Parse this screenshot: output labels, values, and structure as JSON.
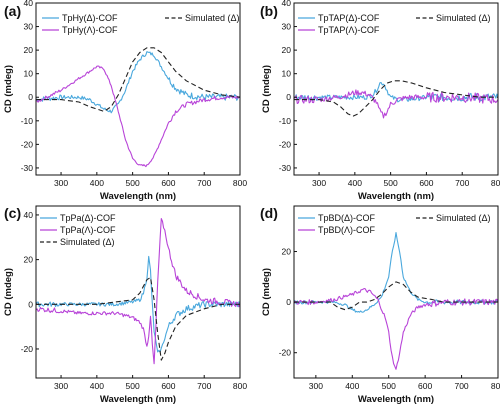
{
  "figure": {
    "xlabel": "Wavelength (nm)",
    "ylabel": "CD (mdeg)",
    "colors": {
      "delta": "#4aa8dd",
      "lambda": "#b844d8",
      "simulated": "#222222"
    }
  },
  "chart_data": [
    {
      "panel": "(a)",
      "type": "line",
      "xlabel": "Wavelength (nm)",
      "ylabel": "CD (mdeg)",
      "xlim": [
        230,
        800
      ],
      "ylim": [
        -33,
        40
      ],
      "xticks": [
        300,
        400,
        500,
        600,
        700,
        800
      ],
      "yticks": [
        -30,
        -20,
        -10,
        0,
        10,
        20,
        30,
        40
      ],
      "legend": {
        "columns": 2
      },
      "series": [
        {
          "name": "TpHy(Δ)-COF",
          "color": "#4aa8dd",
          "style": "solid",
          "noise": 0.8,
          "x": [
            230,
            300,
            350,
            380,
            400,
            420,
            440,
            460,
            480,
            500,
            520,
            540,
            560,
            580,
            600,
            620,
            650,
            700,
            750,
            800
          ],
          "y": [
            -1,
            0,
            0,
            -1,
            -3,
            -5,
            -6,
            -3,
            3,
            11,
            16,
            19,
            18,
            13,
            8,
            4,
            1,
            0,
            0,
            0
          ]
        },
        {
          "name": "TpHy(Λ)-COF",
          "color": "#b844d8",
          "style": "solid",
          "noise": 0.5,
          "x": [
            230,
            260,
            300,
            340,
            380,
            400,
            420,
            440,
            460,
            480,
            500,
            520,
            540,
            560,
            580,
            600,
            620,
            650,
            700,
            750,
            800
          ],
          "y": [
            -2,
            0,
            3,
            7,
            11,
            13,
            12,
            5,
            -6,
            -18,
            -26,
            -29,
            -29,
            -25,
            -18,
            -11,
            -6,
            -3,
            -1,
            0,
            0
          ]
        },
        {
          "name": "Simulated (Δ)",
          "color": "#222222",
          "style": "dashed",
          "noise": 0,
          "x": [
            230,
            300,
            350,
            380,
            400,
            420,
            440,
            460,
            480,
            500,
            520,
            540,
            560,
            580,
            600,
            620,
            650,
            700,
            750,
            800
          ],
          "y": [
            -1,
            -1,
            -2,
            -4,
            -5,
            -6,
            -4,
            1,
            8,
            15,
            19,
            21,
            21,
            19,
            15,
            11,
            7,
            3,
            1,
            0
          ]
        }
      ]
    },
    {
      "panel": "(b)",
      "type": "line",
      "xlabel": "Wavelength (nm)",
      "ylabel": "CD (mdeg)",
      "xlim": [
        230,
        800
      ],
      "ylim": [
        -33,
        40
      ],
      "xticks": [
        300,
        400,
        500,
        600,
        700,
        800
      ],
      "yticks": [
        -30,
        -20,
        -10,
        0,
        10,
        20,
        30,
        40
      ],
      "legend": {
        "columns": 2
      },
      "series": [
        {
          "name": "TpTAP(Δ)-COF",
          "color": "#4aa8dd",
          "style": "solid",
          "noise": 1.0,
          "x": [
            230,
            300,
            350,
            400,
            430,
            450,
            460,
            470,
            480,
            490,
            500,
            520,
            550,
            600,
            700,
            800
          ],
          "y": [
            0,
            0,
            0,
            0,
            0,
            1,
            3,
            6,
            6,
            3,
            0,
            -1,
            -1,
            0,
            0,
            0
          ]
        },
        {
          "name": "TpTAP(Λ)-COF",
          "color": "#b844d8",
          "style": "solid",
          "noise": 1.2,
          "x": [
            230,
            300,
            350,
            380,
            400,
            420,
            440,
            460,
            470,
            480,
            490,
            500,
            520,
            550,
            600,
            700,
            800
          ],
          "y": [
            -1,
            -1,
            0,
            1,
            2,
            2,
            1,
            -2,
            -6,
            -8,
            -6,
            -3,
            -1,
            0,
            0,
            0,
            -1
          ]
        },
        {
          "name": "Simulated (Δ)",
          "color": "#222222",
          "style": "dashed",
          "noise": 0,
          "x": [
            230,
            300,
            340,
            360,
            380,
            395,
            410,
            430,
            450,
            470,
            490,
            510,
            530,
            560,
            600,
            650,
            700,
            750,
            800
          ],
          "y": [
            -1,
            -1,
            -2,
            -4,
            -7,
            -8,
            -7,
            -4,
            -1,
            3,
            6,
            7,
            7,
            6,
            4,
            2,
            1,
            0,
            0
          ]
        }
      ]
    },
    {
      "panel": "(c)",
      "type": "line",
      "xlabel": "Wavelength (nm)",
      "ylabel": "CD (mdeg)",
      "xlim": [
        230,
        800
      ],
      "ylim": [
        -33,
        44
      ],
      "xticks": [
        300,
        400,
        500,
        600,
        700,
        800
      ],
      "yticks": [
        -20,
        0,
        20,
        40
      ],
      "legend": {
        "columns": 1
      },
      "series": [
        {
          "name": "TpPa(Δ)-COF",
          "color": "#4aa8dd",
          "style": "solid",
          "noise": 0.8,
          "x": [
            230,
            300,
            400,
            450,
            500,
            520,
            530,
            540,
            545,
            550,
            555,
            560,
            570,
            580,
            590,
            600,
            620,
            650,
            700,
            750,
            800
          ],
          "y": [
            0,
            0,
            0,
            0,
            1,
            2,
            5,
            12,
            21,
            15,
            0,
            -12,
            -22,
            -20,
            -15,
            -10,
            -5,
            -2,
            0,
            0,
            0
          ]
        },
        {
          "name": "TpPa(Λ)-COF",
          "color": "#b844d8",
          "style": "solid",
          "noise": 0.8,
          "x": [
            230,
            300,
            350,
            400,
            450,
            480,
            500,
            520,
            530,
            540,
            545,
            550,
            555,
            560,
            565,
            570,
            580,
            590,
            600,
            620,
            650,
            700,
            750,
            800
          ],
          "y": [
            -2,
            -3,
            -4,
            -4,
            -4,
            -5,
            -6,
            -8,
            -11,
            -19,
            -14,
            -5,
            -18,
            -27,
            -10,
            10,
            38,
            33,
            25,
            13,
            6,
            2,
            1,
            0
          ]
        },
        {
          "name": "Simulated (Δ)",
          "color": "#222222",
          "style": "dashed",
          "noise": 0,
          "x": [
            230,
            300,
            400,
            450,
            500,
            520,
            540,
            550,
            560,
            570,
            580,
            590,
            600,
            620,
            650,
            700,
            750,
            800
          ],
          "y": [
            0,
            0,
            0,
            1,
            2,
            5,
            11,
            12,
            2,
            -13,
            -25,
            -22,
            -17,
            -10,
            -5,
            -2,
            0,
            0
          ]
        }
      ]
    },
    {
      "panel": "(d)",
      "type": "line",
      "xlabel": "Wavelength (nm)",
      "ylabel": "CD (mdeg)",
      "xlim": [
        240,
        800
      ],
      "ylim": [
        -30,
        38
      ],
      "xticks": [
        300,
        400,
        500,
        600,
        700,
        800
      ],
      "yticks": [
        -20,
        0,
        20
      ],
      "legend": {
        "columns": 2
      },
      "series": [
        {
          "name": "TpBD(Δ)-COF",
          "color": "#4aa8dd",
          "style": "solid",
          "noise": 0.5,
          "x": [
            240,
            300,
            350,
            380,
            400,
            420,
            440,
            460,
            480,
            500,
            510,
            520,
            530,
            540,
            560,
            580,
            600,
            650,
            700,
            750,
            800
          ],
          "y": [
            0,
            0,
            0,
            -1,
            -3,
            -4,
            -3,
            -1,
            2,
            10,
            20,
            27,
            20,
            10,
            4,
            1,
            0,
            0,
            0,
            0,
            0
          ]
        },
        {
          "name": "TpBD(Λ)-COF",
          "color": "#b844d8",
          "style": "solid",
          "noise": 0.7,
          "x": [
            240,
            300,
            350,
            400,
            430,
            450,
            470,
            490,
            500,
            510,
            520,
            530,
            540,
            560,
            580,
            600,
            650,
            700,
            750,
            800
          ],
          "y": [
            0,
            0,
            1,
            3,
            5,
            4,
            1,
            -6,
            -12,
            -22,
            -27,
            -20,
            -12,
            -5,
            -2,
            -1,
            0,
            0,
            0,
            0
          ]
        },
        {
          "name": "Simulated (Δ)",
          "color": "#222222",
          "style": "dashed",
          "noise": 0,
          "x": [
            240,
            300,
            340,
            360,
            380,
            400,
            420,
            440,
            460,
            480,
            500,
            520,
            540,
            560,
            580,
            620,
            650,
            700,
            750,
            800
          ],
          "y": [
            0,
            0,
            0,
            -2,
            -3,
            -2,
            0,
            0,
            1,
            3,
            6,
            8,
            7,
            4,
            2,
            1,
            0,
            0,
            0,
            0
          ]
        }
      ]
    }
  ]
}
